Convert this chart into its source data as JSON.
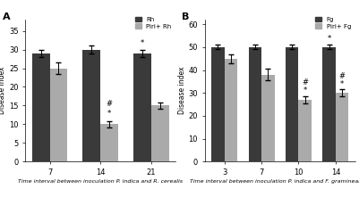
{
  "panel_A": {
    "title": "A",
    "categories": [
      7,
      14,
      21
    ],
    "Rh_values": [
      29,
      30,
      29
    ],
    "PiriRh_values": [
      25,
      10,
      15
    ],
    "Rh_errors": [
      1.0,
      1.0,
      1.0
    ],
    "PiriRh_errors": [
      1.5,
      0.8,
      0.8
    ],
    "Rh_color": "#3a3a3a",
    "PiriRh_color": "#aaaaaa",
    "ylabel": "Disease index",
    "xlabel": "Time interval between inoculation P. indica and R. cerealis",
    "ylim": [
      0,
      38
    ],
    "yticks": [
      0,
      5,
      10,
      15,
      20,
      25,
      30,
      35
    ],
    "legend_labels": [
      "Rh",
      "Piri+ Rh"
    ],
    "sig_14_star": "*",
    "sig_14_hash": "#",
    "sig_21_star": "*"
  },
  "panel_B": {
    "title": "B",
    "categories": [
      3,
      7,
      10,
      14
    ],
    "Fg_values": [
      50,
      50,
      50,
      50
    ],
    "PiriFg_values": [
      45,
      38,
      27,
      30
    ],
    "Fg_errors": [
      1.0,
      1.0,
      1.0,
      1.0
    ],
    "PiriFg_errors": [
      2.0,
      2.5,
      1.5,
      1.5
    ],
    "Fg_color": "#3a3a3a",
    "PiriFg_color": "#aaaaaa",
    "ylabel": "Disease index",
    "xlabel": "Time interval between inoculation P. indica and F. graminearum",
    "ylim": [
      0,
      62
    ],
    "yticks": [
      0,
      10,
      20,
      30,
      40,
      50,
      60
    ],
    "legend_labels": [
      "Fg",
      "Piri+ Fg"
    ],
    "sig_10_star": "*",
    "sig_10_hash": "#",
    "sig_14_Fg_star": "*",
    "sig_14_PiriFg_star": "*",
    "sig_14_hash": "#"
  }
}
